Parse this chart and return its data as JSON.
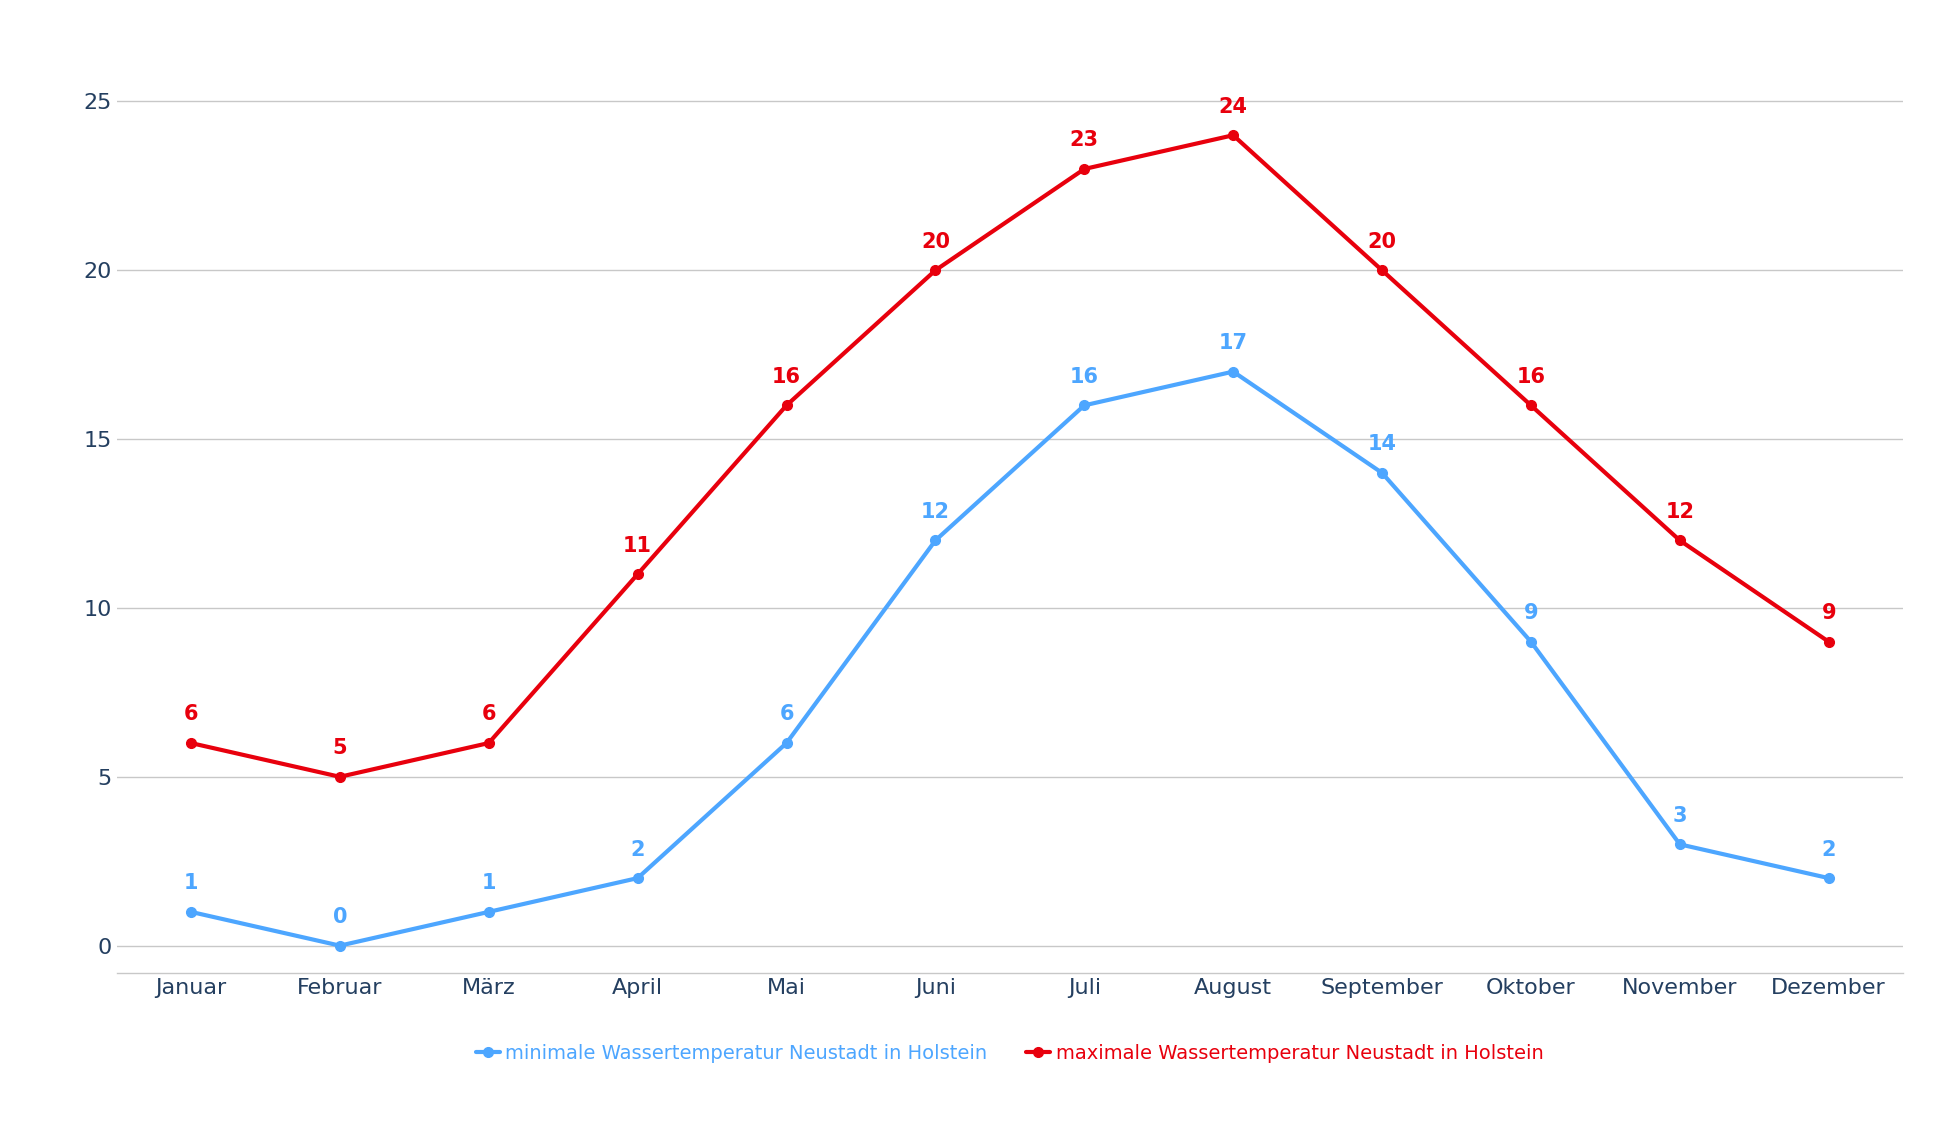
{
  "months": [
    "Januar",
    "Februar",
    "März",
    "April",
    "Mai",
    "Juni",
    "Juli",
    "August",
    "September",
    "Oktober",
    "November",
    "Dezember"
  ],
  "min_temps": [
    1,
    0,
    1,
    2,
    6,
    12,
    16,
    17,
    14,
    9,
    3,
    2
  ],
  "max_temps": [
    6,
    5,
    6,
    11,
    16,
    20,
    23,
    24,
    20,
    16,
    12,
    9
  ],
  "min_color": "#4da6ff",
  "max_color": "#e8000d",
  "tick_label_color": "#243f60",
  "min_label": "minimale Wassertemperatur Neustadt in Holstein",
  "max_label": "maximale Wassertemperatur Neustadt in Holstein",
  "ylim": [
    -0.8,
    27
  ],
  "yticks": [
    0,
    5,
    10,
    15,
    20,
    25
  ],
  "background_color": "#ffffff",
  "grid_color": "#c8c8c8",
  "line_width": 3.0,
  "marker": "o",
  "marker_size": 7,
  "annotation_fontsize": 15,
  "tick_fontsize": 16,
  "legend_fontsize": 14,
  "legend_marker_color_min": "#4da6ff",
  "legend_marker_color_max": "#e8000d"
}
